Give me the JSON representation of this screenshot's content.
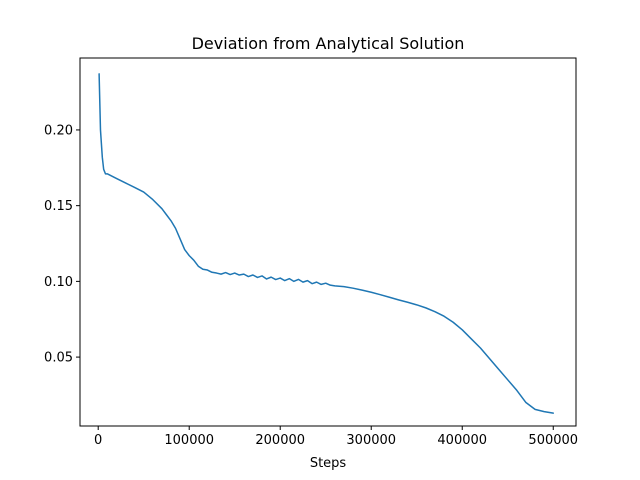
{
  "chart_data": {
    "type": "line",
    "title": "Deviation from Analytical Solution",
    "xlabel": "Steps",
    "ylabel": "",
    "xlim": [
      -20000,
      525000
    ],
    "ylim": [
      0.0045,
      0.2475
    ],
    "xticks": [
      0,
      100000,
      200000,
      300000,
      400000,
      500000
    ],
    "xtick_labels": [
      "0",
      "100000",
      "200000",
      "300000",
      "400000",
      "500000"
    ],
    "yticks": [
      0.05,
      0.1,
      0.15,
      0.2
    ],
    "ytick_labels": [
      "0.05",
      "0.10",
      "0.15",
      "0.20"
    ],
    "grid": false,
    "legend": "none",
    "series": [
      {
        "color": "#1f77b4",
        "x": [
          1000,
          2500,
          4500,
          6000,
          8000,
          10000,
          20000,
          30000,
          40000,
          50000,
          60000,
          70000,
          75000,
          80000,
          85000,
          90000,
          95000,
          100000,
          105000,
          110000,
          115000,
          120000,
          125000,
          130000,
          135000,
          140000,
          145000,
          150000,
          155000,
          160000,
          165000,
          170000,
          175000,
          180000,
          185000,
          190000,
          195000,
          200000,
          205000,
          210000,
          215000,
          220000,
          225000,
          230000,
          235000,
          240000,
          245000,
          250000,
          255000,
          260000,
          270000,
          280000,
          290000,
          300000,
          310000,
          320000,
          330000,
          340000,
          350000,
          360000,
          370000,
          380000,
          390000,
          400000,
          410000,
          420000,
          430000,
          440000,
          450000,
          460000,
          470000,
          480000,
          490000,
          500000
        ],
        "y": [
          0.237,
          0.2,
          0.182,
          0.174,
          0.171,
          0.171,
          0.168,
          0.165,
          0.162,
          0.159,
          0.154,
          0.148,
          0.144,
          0.14,
          0.135,
          0.128,
          0.121,
          0.117,
          0.114,
          0.11,
          0.108,
          0.1075,
          0.106,
          0.1055,
          0.1048,
          0.1058,
          0.1045,
          0.1055,
          0.1042,
          0.1048,
          0.1032,
          0.1042,
          0.1026,
          0.1036,
          0.1016,
          0.1028,
          0.1012,
          0.1022,
          0.1005,
          0.1018,
          0.1,
          0.1013,
          0.0995,
          0.1005,
          0.0985,
          0.0995,
          0.098,
          0.0988,
          0.0975,
          0.097,
          0.0965,
          0.0955,
          0.0942,
          0.0928,
          0.0912,
          0.0895,
          0.0878,
          0.0862,
          0.0845,
          0.0825,
          0.08,
          0.077,
          0.073,
          0.068,
          0.062,
          0.056,
          0.049,
          0.042,
          0.035,
          0.028,
          0.02,
          0.0155,
          0.014,
          0.013
        ]
      }
    ]
  }
}
